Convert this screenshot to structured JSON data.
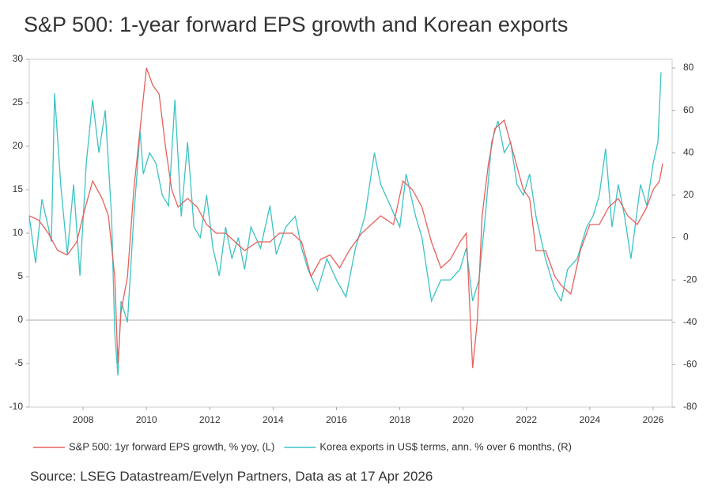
{
  "chart_data": {
    "type": "line",
    "title": "S&P 500: 1-year forward EPS growth and Korean exports",
    "source": "Source: LSEG Datastream/Evelyn Partners, Data as at 17 Apr 2026",
    "xlim": [
      2006.3,
      2026.6
    ],
    "xticks": [
      2008,
      2010,
      2012,
      2014,
      2016,
      2018,
      2020,
      2022,
      2024,
      2026
    ],
    "ylim": [
      -10,
      30
    ],
    "yticks": [
      -10,
      -5,
      0,
      5,
      10,
      15,
      20,
      25,
      30
    ],
    "y2lim": [
      -80,
      84.1
    ],
    "y2ticks": [
      -80,
      -60,
      -40,
      -20,
      0,
      20,
      40,
      60,
      80
    ],
    "series": [
      {
        "name": "S&P 500: 1yr forward EPS growth, % yoy, (L)",
        "color": "#e8605c",
        "axis": "y",
        "x": [
          2006.3,
          2006.6,
          2006.9,
          2007.2,
          2007.5,
          2007.8,
          2008.0,
          2008.3,
          2008.6,
          2008.8,
          2009.0,
          2009.1,
          2009.2,
          2009.4,
          2009.6,
          2009.8,
          2010.0,
          2010.2,
          2010.4,
          2010.6,
          2010.8,
          2011.0,
          2011.3,
          2011.6,
          2011.9,
          2012.2,
          2012.5,
          2012.8,
          2013.1,
          2013.5,
          2013.9,
          2014.2,
          2014.6,
          2014.9,
          2015.2,
          2015.5,
          2015.8,
          2016.1,
          2016.4,
          2016.8,
          2017.1,
          2017.4,
          2017.8,
          2018.1,
          2018.4,
          2018.7,
          2019.0,
          2019.3,
          2019.6,
          2019.9,
          2020.1,
          2020.3,
          2020.45,
          2020.6,
          2020.8,
          2021.0,
          2021.3,
          2021.6,
          2021.9,
          2022.1,
          2022.3,
          2022.6,
          2022.9,
          2023.1,
          2023.4,
          2023.7,
          2024.0,
          2024.3,
          2024.6,
          2024.9,
          2025.2,
          2025.5,
          2025.8,
          2026.0,
          2026.2,
          2026.3
        ],
        "values": [
          12,
          11.5,
          10,
          8,
          7.5,
          9,
          12,
          16,
          14,
          12,
          5,
          -5,
          1,
          5,
          15,
          22,
          29,
          27,
          26,
          20,
          15,
          13,
          14,
          13,
          11,
          10,
          10,
          9,
          8,
          9,
          9,
          10,
          10,
          9,
          5,
          7,
          7.5,
          6,
          8,
          10,
          11,
          12,
          11,
          16,
          15,
          13,
          9,
          6,
          7,
          9,
          10,
          -5.5,
          0,
          12,
          18,
          22,
          23,
          19,
          15,
          14,
          8,
          8,
          5,
          4,
          3,
          8,
          11,
          11,
          13,
          14,
          12,
          11,
          13,
          15,
          16,
          18
        ]
      },
      {
        "name": "Korea exports in US$ terms, ann. % over 6 months, (R)",
        "color": "#3cc3c3",
        "axis": "y2",
        "x": [
          2006.3,
          2006.5,
          2006.7,
          2006.9,
          2007.0,
          2007.1,
          2007.3,
          2007.5,
          2007.7,
          2007.9,
          2008.1,
          2008.3,
          2008.5,
          2008.7,
          2008.9,
          2009.0,
          2009.1,
          2009.2,
          2009.4,
          2009.6,
          2009.8,
          2009.9,
          2010.1,
          2010.3,
          2010.5,
          2010.7,
          2010.9,
          2011.1,
          2011.3,
          2011.5,
          2011.7,
          2011.9,
          2012.1,
          2012.3,
          2012.5,
          2012.7,
          2012.9,
          2013.1,
          2013.3,
          2013.6,
          2013.9,
          2014.1,
          2014.4,
          2014.7,
          2014.9,
          2015.1,
          2015.4,
          2015.7,
          2016.0,
          2016.3,
          2016.6,
          2016.9,
          2017.2,
          2017.4,
          2017.7,
          2018.0,
          2018.2,
          2018.5,
          2018.7,
          2019.0,
          2019.3,
          2019.6,
          2019.9,
          2020.1,
          2020.3,
          2020.5,
          2020.7,
          2020.9,
          2021.1,
          2021.3,
          2021.5,
          2021.7,
          2021.9,
          2022.1,
          2022.3,
          2022.6,
          2022.9,
          2023.1,
          2023.3,
          2023.6,
          2023.9,
          2024.1,
          2024.3,
          2024.5,
          2024.7,
          2024.9,
          2025.1,
          2025.3,
          2025.6,
          2025.8,
          2026.0,
          2026.15,
          2026.25
        ],
        "values": [
          10,
          -12,
          18,
          5,
          -2,
          68,
          24,
          -8,
          25,
          -18,
          35,
          65,
          40,
          60,
          10,
          -45,
          -65,
          -30,
          -40,
          10,
          50,
          30,
          40,
          35,
          20,
          15,
          65,
          10,
          45,
          5,
          0,
          20,
          -5,
          -18,
          5,
          -10,
          0,
          -15,
          5,
          -5,
          15,
          -8,
          5,
          10,
          -5,
          -15,
          -25,
          -10,
          -20,
          -28,
          -5,
          10,
          40,
          25,
          15,
          5,
          30,
          10,
          0,
          -30,
          -20,
          -20,
          -15,
          -5,
          -30,
          -20,
          10,
          45,
          55,
          40,
          45,
          25,
          20,
          30,
          10,
          -10,
          -25,
          -30,
          -15,
          -10,
          5,
          10,
          20,
          42,
          5,
          25,
          10,
          -10,
          25,
          15,
          35,
          45,
          78
        ]
      }
    ]
  }
}
